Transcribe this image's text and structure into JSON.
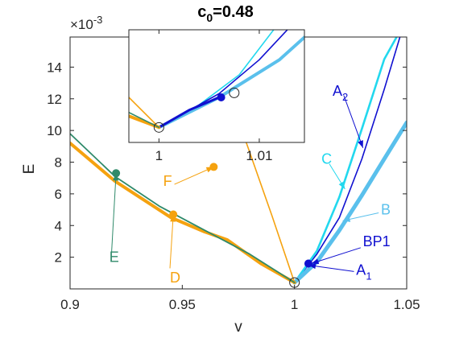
{
  "colors": {
    "dark_blue": "#1010d0",
    "cyan": "#22d8ee",
    "light_blue": "#5ac0ec",
    "orange": "#f5a20f",
    "green": "#2f8a6a",
    "axis": "#262626"
  },
  "chart_data": {
    "type": "line",
    "title": "c_0=0.48",
    "title_base": "c",
    "title_sub": "0",
    "title_rest": "=0.48",
    "xlabel": "v",
    "ylabel": "E",
    "y_multiplier_base": "×10",
    "y_multiplier_exp": "-3",
    "xlim": [
      0.9,
      1.05
    ],
    "ylim": [
      0.0,
      0.0159
    ],
    "xticks": [
      0.9,
      0.95,
      1.0,
      1.05
    ],
    "xtick_labels": [
      "0.9",
      "0.95",
      "1",
      "1.05"
    ],
    "yticks": [
      0.002,
      0.004,
      0.006,
      0.008,
      0.01,
      0.012,
      0.014
    ],
    "ytick_labels": [
      "2",
      "4",
      "6",
      "8",
      "10",
      "12",
      "14"
    ],
    "grid": false,
    "series": [
      {
        "key": "A2",
        "color_key": "dark_blue",
        "width": 1.6,
        "x": [
          1.0,
          1.01,
          1.02,
          1.03,
          1.04,
          1.047
        ],
        "y": [
          0.0004,
          0.0022,
          0.0045,
          0.0082,
          0.0126,
          0.0159
        ]
      },
      {
        "key": "C",
        "color_key": "cyan",
        "width": 2.6,
        "x": [
          1.0,
          1.01,
          1.02,
          1.03,
          1.04,
          1.0455
        ],
        "y": [
          0.0004,
          0.0024,
          0.0058,
          0.0101,
          0.0145,
          0.0159
        ]
      },
      {
        "key": "B",
        "color_key": "light_blue",
        "width": 5,
        "x": [
          1.0,
          1.01,
          1.02,
          1.03,
          1.04,
          1.05
        ],
        "y": [
          0.0004,
          0.0017,
          0.0037,
          0.0059,
          0.0082,
          0.0105
        ]
      },
      {
        "key": "F",
        "color_key": "orange",
        "width": 1.6,
        "x": [
          0.962,
          0.99,
          1.0
        ],
        "y": [
          0.0159,
          0.0046,
          0.0004
        ]
      },
      {
        "key": "D",
        "color_key": "orange",
        "width": 4,
        "x": [
          0.9,
          0.92,
          0.945,
          0.96,
          0.97,
          0.985,
          1.0
        ],
        "y": [
          0.0092,
          0.0068,
          0.0045,
          0.0036,
          0.0031,
          0.0016,
          0.0004
        ]
      },
      {
        "key": "E",
        "color_key": "green",
        "width": 1.8,
        "x": [
          0.9,
          0.92,
          0.94,
          0.96,
          0.98,
          1.0
        ],
        "y": [
          0.0098,
          0.0071,
          0.0052,
          0.0037,
          0.0022,
          0.0004
        ]
      }
    ],
    "annotations": [
      {
        "text": "A",
        "sub": "2",
        "color_key": "dark_blue",
        "tx": 1.017,
        "ty": 0.0122,
        "ax": 1.022,
        "ay": 0.0122,
        "px": 1.0305,
        "py": 0.0089
      },
      {
        "text": "C",
        "sub": "",
        "color_key": "cyan",
        "tx": 1.012,
        "ty": 0.0079,
        "ax": 1.0155,
        "ay": 0.0079,
        "px": 1.0225,
        "py": 0.0063
      },
      {
        "text": "B",
        "sub": "",
        "color_key": "light_blue",
        "tx": 1.0385,
        "ty": 0.0047,
        "ax": 1.0375,
        "ay": 0.0048,
        "px": 1.0215,
        "py": 0.0043
      },
      {
        "text": "BP1",
        "sub": "",
        "color_key": "dark_blue",
        "tx": 1.0305,
        "ty": 0.0027,
        "ax": 1.0295,
        "ay": 0.0026,
        "px": 1.0075,
        "py": 0.0016
      },
      {
        "text": "A",
        "sub": "1",
        "color_key": "dark_blue",
        "tx": 1.0275,
        "ty": 0.0009,
        "ax": 1.0265,
        "ay": 0.0011,
        "px": 1.0062,
        "py": 0.0015
      },
      {
        "text": "F",
        "sub": "",
        "color_key": "orange",
        "tx": 0.9415,
        "ty": 0.0065,
        "ax": 0.9465,
        "ay": 0.0066,
        "px": 0.964,
        "py": 0.0077
      },
      {
        "text": "E",
        "sub": "",
        "color_key": "green",
        "tx": 0.9175,
        "ty": 0.0017,
        "ax": 0.9185,
        "ay": 0.0023,
        "px": 0.9205,
        "py": 0.0073
      },
      {
        "text": "D",
        "sub": "",
        "color_key": "orange",
        "tx": 0.9445,
        "ty": 0.0004,
        "ax": 0.9445,
        "ay": 0.0013,
        "px": 0.946,
        "py": 0.0047
      }
    ],
    "markers": [
      {
        "x": 0.9205,
        "y": 0.0073,
        "color_key": "green",
        "style": "dot"
      },
      {
        "x": 0.964,
        "y": 0.0077,
        "color_key": "orange",
        "style": "dot"
      },
      {
        "x": 0.946,
        "y": 0.0047,
        "color_key": "orange",
        "style": "dot"
      },
      {
        "x": 1.0062,
        "y": 0.0016,
        "color_key": "dark_blue",
        "style": "dot"
      },
      {
        "x": 1.0,
        "y": 0.0004,
        "color_key": "axis",
        "style": "ring"
      }
    ],
    "inset": {
      "xlim": [
        0.997,
        1.0145
      ],
      "ylim": [
        0.0,
        0.0015
      ],
      "xticks": [
        1.0,
        1.01
      ],
      "xtick_labels": [
        "1",
        "1.01"
      ],
      "series": [
        {
          "color_key": "cyan",
          "width": 1.6,
          "x": [
            1.0,
            1.004,
            1.008,
            1.012
          ],
          "y": [
            0.0002,
            0.0005,
            0.0009,
            0.0016
          ]
        },
        {
          "color_key": "light_blue",
          "width": 4,
          "x": [
            1.0,
            1.006,
            1.012,
            1.0145
          ],
          "y": [
            0.0002,
            0.0006,
            0.0011,
            0.0014
          ]
        },
        {
          "color_key": "dark_blue",
          "width": 1.6,
          "x": [
            1.0,
            1.006,
            1.01,
            1.0135
          ],
          "y": [
            0.0002,
            0.00065,
            0.0011,
            0.0016
          ]
        },
        {
          "color_key": "dark_blue",
          "width": 3,
          "x": [
            1.0,
            1.003,
            1.006
          ],
          "y": [
            0.0002,
            0.00043,
            0.0006
          ]
        },
        {
          "color_key": "orange",
          "width": 1.6,
          "x": [
            0.997,
            1.0
          ],
          "y": [
            0.0006,
            0.0002
          ]
        },
        {
          "color_key": "orange",
          "width": 4,
          "x": [
            0.997,
            1.0
          ],
          "y": [
            0.00035,
            0.0002
          ]
        },
        {
          "color_key": "green",
          "width": 1.6,
          "x": [
            0.997,
            1.0
          ],
          "y": [
            0.0004,
            0.0002
          ]
        }
      ],
      "markers": [
        {
          "x": 1.0062,
          "y": 0.0006,
          "color_key": "dark_blue",
          "style": "dot"
        },
        {
          "x": 1.0075,
          "y": 0.00066,
          "color_key": "axis",
          "style": "ring"
        },
        {
          "x": 1.0,
          "y": 0.0002,
          "color_key": "axis",
          "style": "ring"
        }
      ]
    }
  }
}
